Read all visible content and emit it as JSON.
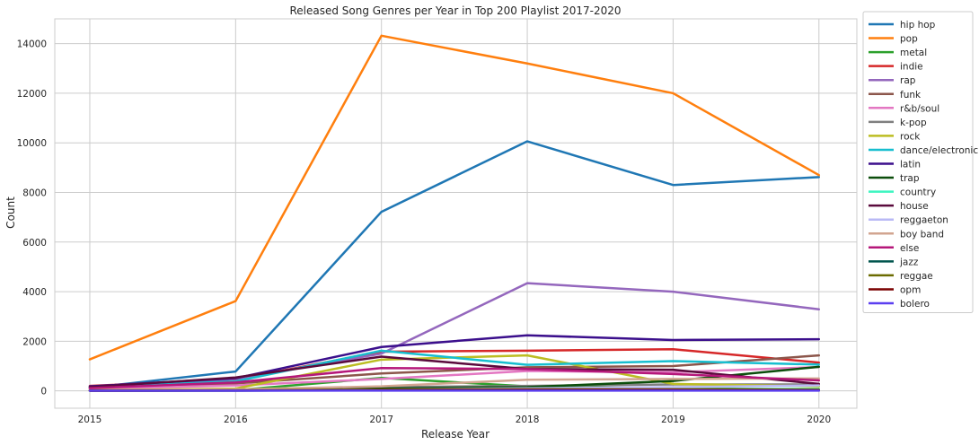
{
  "chart_data": {
    "type": "line",
    "title": "Released Song Genres per Year in Top 200 Playlist 2017-2020",
    "xlabel": "Release Year",
    "ylabel": "Count",
    "x": [
      2015,
      2016,
      2017,
      2018,
      2019,
      2020
    ],
    "x_ticks": [
      "2015",
      "2016",
      "2017",
      "2018",
      "2019",
      "2020"
    ],
    "xlim": [
      2014.76,
      2020.26
    ],
    "ylim": [
      -700,
      15000
    ],
    "y_ticks": [
      0,
      2000,
      4000,
      6000,
      8000,
      10000,
      12000,
      14000
    ],
    "y_tick_labels": [
      "0",
      "2000",
      "4000",
      "6000",
      "8000",
      "10000",
      "12000",
      "14000"
    ],
    "grid": true,
    "legend_position": "outside-right",
    "series": [
      {
        "name": "hip hop",
        "color": "#1f77b4",
        "values": [
          120,
          780,
          7220,
          10060,
          8300,
          8620
        ]
      },
      {
        "name": "pop",
        "color": "#ff7f0e",
        "values": [
          1270,
          3620,
          14320,
          13200,
          12000,
          8700
        ]
      },
      {
        "name": "metal",
        "color": "#2ca02c",
        "values": [
          10,
          30,
          520,
          180,
          100,
          60
        ]
      },
      {
        "name": "indie",
        "color": "#d62728",
        "values": [
          200,
          460,
          1580,
          1620,
          1680,
          1140
        ]
      },
      {
        "name": "rap",
        "color": "#9467bd",
        "values": [
          110,
          480,
          1500,
          4340,
          4000,
          3290
        ]
      },
      {
        "name": "funk",
        "color": "#8c564b",
        "values": [
          100,
          300,
          700,
          950,
          1000,
          1430
        ]
      },
      {
        "name": "r&b/soul",
        "color": "#e377c2",
        "values": [
          70,
          220,
          480,
          800,
          750,
          960
        ]
      },
      {
        "name": "k-pop",
        "color": "#7f7f7f",
        "values": [
          20,
          60,
          150,
          200,
          260,
          260
        ]
      },
      {
        "name": "rock",
        "color": "#bcbd22",
        "values": [
          20,
          90,
          1260,
          1430,
          280,
          180
        ]
      },
      {
        "name": "dance/electronic",
        "color": "#17becf",
        "values": [
          150,
          380,
          1620,
          1050,
          1200,
          1060
        ]
      },
      {
        "name": "latin",
        "color": "#3b0f8c",
        "values": [
          180,
          510,
          1770,
          2240,
          2050,
          2080
        ]
      },
      {
        "name": "trap",
        "color": "#0b4d0b",
        "values": [
          10,
          40,
          100,
          150,
          400,
          970
        ]
      },
      {
        "name": "country",
        "color": "#3cf5c0",
        "values": [
          5,
          10,
          30,
          40,
          60,
          80
        ]
      },
      {
        "name": "house",
        "color": "#5a0a3c",
        "values": [
          150,
          540,
          1380,
          880,
          850,
          280
        ]
      },
      {
        "name": "reggaeton",
        "color": "#b9b9f5",
        "values": [
          5,
          20,
          50,
          100,
          150,
          220
        ]
      },
      {
        "name": "boy band",
        "color": "#d2a590",
        "values": [
          10,
          60,
          180,
          450,
          480,
          500
        ]
      },
      {
        "name": "else",
        "color": "#b5177a",
        "values": [
          110,
          340,
          920,
          880,
          680,
          420
        ]
      },
      {
        "name": "jazz",
        "color": "#00544d",
        "values": [
          5,
          10,
          20,
          20,
          20,
          20
        ]
      },
      {
        "name": "reggae",
        "color": "#6b6b00",
        "values": [
          5,
          20,
          50,
          60,
          60,
          50
        ]
      },
      {
        "name": "opm",
        "color": "#7a0000",
        "values": [
          5,
          10,
          30,
          40,
          40,
          30
        ]
      },
      {
        "name": "bolero",
        "color": "#5b3ff0",
        "values": [
          5,
          5,
          10,
          10,
          10,
          10
        ]
      }
    ]
  }
}
